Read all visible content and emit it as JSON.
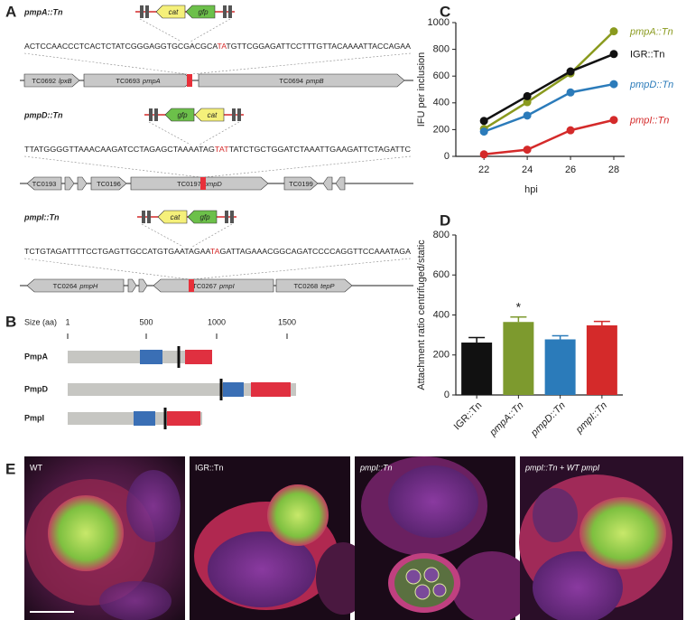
{
  "panel_labels": [
    "A",
    "B",
    "C",
    "D",
    "E"
  ],
  "panel_a": {
    "constructs": [
      {
        "label": "pmpA::Tn",
        "insert": [
          "cat",
          "gfp"
        ],
        "sequence_before": "ACTCCAACCCTCACTCTATCGGGAGGTGCGACGCA",
        "insertion_site": "TA",
        "sequence_after": "TGTTCGGAGATTCCTTTGTTACAAAATTACCAGAA",
        "genes": [
          {
            "id": "TC0692",
            "name": "lpxB"
          },
          {
            "id": "TC0693",
            "name": "pmpA"
          },
          {
            "id": "TC0694",
            "name": "pmpB"
          }
        ]
      },
      {
        "label": "pmpD::Tn",
        "insert": [
          "gfp",
          "cat"
        ],
        "sequence_before": "TTATGGGGTTAAACAAGATCCTAGAGCTAAAATAG",
        "insertion_site": "TAT",
        "sequence_after": "TATCTGCTGGATCTAAATTGAAGATTCTAGATTC",
        "genes": [
          {
            "id": "TC0193",
            "name": null
          },
          {
            "id": "TC0196",
            "name": null
          },
          {
            "id": "TC0197",
            "name": "pmpD"
          },
          {
            "id": "TC0199",
            "name": null
          }
        ]
      },
      {
        "label": "pmpI::Tn",
        "insert": [
          "cat",
          "gfp"
        ],
        "sequence_before": "TCTGTAGATTTTCCTGAGTTGCCATGTGAATAGAA",
        "insertion_site": "TA",
        "sequence_after": "GATTAGAAACGGCAGATCCCCAGGTTCCAAATAGA",
        "genes": [
          {
            "id": "TC0264",
            "name": "pmpH"
          },
          {
            "id": "TC0267",
            "name": "pmpI"
          },
          {
            "id": "TC0268",
            "name": "tepP"
          }
        ]
      }
    ]
  },
  "panel_b": {
    "axis_label": "Size (aa)",
    "ticks": [
      "1",
      "500",
      "1000",
      "1500"
    ],
    "proteins": [
      "PmpA",
      "PmpD",
      "PmpI"
    ]
  },
  "chart_data": [
    {
      "type": "line",
      "x_label": "hpi",
      "y_label": "IFU per inclusion",
      "x": [
        22,
        24,
        26,
        28
      ],
      "xlim": [
        20.7,
        28.5
      ],
      "xticks": [
        22,
        24,
        26,
        28
      ],
      "ylim": [
        0,
        1000
      ],
      "yticks": [
        0,
        200,
        400,
        600,
        800,
        1000
      ],
      "series": [
        {
          "name": "pmpA::Tn",
          "color": "#8a9a1e",
          "values": [
            205,
            405,
            620,
            935
          ]
        },
        {
          "name": "IGR::Tn",
          "color": "#111111",
          "values": [
            265,
            450,
            635,
            765
          ]
        },
        {
          "name": "pmpD::Tn",
          "color": "#2b7bba",
          "values": [
            185,
            305,
            478,
            540
          ]
        },
        {
          "name": "pmpI::Tn",
          "color": "#d42a2a",
          "values": [
            15,
            50,
            195,
            272
          ]
        }
      ]
    },
    {
      "type": "bar",
      "y_label": "Attachment ratio centrifuged/static",
      "categories": [
        "IGR::Tn",
        "pmpA::Tn",
        "pmpD::Tn",
        "pmpI::Tn"
      ],
      "values": [
        262,
        365,
        278,
        348
      ],
      "errors": [
        25,
        25,
        18,
        20
      ],
      "colors": [
        "#111111",
        "#7d9a2e",
        "#2b7bba",
        "#d42a2a"
      ],
      "significance": [
        null,
        "*",
        null,
        null
      ],
      "ylim": [
        0,
        800
      ],
      "yticks": [
        0,
        200,
        400,
        600,
        800
      ]
    }
  ],
  "panel_e": {
    "images": [
      "WT",
      "IGR::Tn",
      "pmpI::Tn",
      "pmpI::Tn + WT pmpI"
    ]
  }
}
